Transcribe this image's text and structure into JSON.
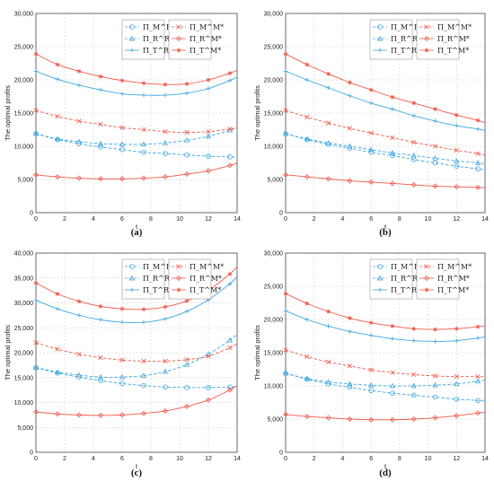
{
  "colors": {
    "blue": "#3ea6e0",
    "red": "#ef5a48",
    "axis": "#333333",
    "grid": "#c8c8c8"
  },
  "legend_labels": {
    "pi_M_R": "Π_M^R*",
    "pi_R_R": "Π_R^R*",
    "pi_T_R": "Π_T^R*",
    "pi_M_M": "Π_M^M*",
    "pi_R_M": "Π_R^M*",
    "pi_T_M": "Π_T^M*"
  },
  "chart_data": [
    {
      "type": "line",
      "caption": "(a)",
      "xlabel": "t",
      "ylabel": "The optimal profits",
      "xlim": [
        0,
        14
      ],
      "ylim": [
        0,
        30000
      ],
      "xticks": [
        "0",
        "2",
        "4",
        "6",
        "8",
        "10",
        "12",
        "14"
      ],
      "yticks": [
        "0",
        "5,000",
        "10,000",
        "15,000",
        "20,000",
        "25,000",
        "30,000"
      ],
      "x": [
        0,
        1.5,
        3,
        4.5,
        6,
        7.5,
        9,
        10.5,
        12,
        13.5
      ],
      "series": [
        {
          "name": "Π_M^R*",
          "color": "blue",
          "dash": true,
          "marker": "circle",
          "values": [
            11900,
            11000,
            10400,
            9900,
            9500,
            9100,
            8900,
            8700,
            8500,
            8400
          ]
        },
        {
          "name": "Π_R^R*",
          "color": "blue",
          "dash": true,
          "marker": "triangle",
          "values": [
            11900,
            11100,
            10700,
            10400,
            10300,
            10300,
            10500,
            10900,
            11500,
            12400
          ]
        },
        {
          "name": "Π_T^R*",
          "color": "blue",
          "dash": false,
          "marker": "plus",
          "values": [
            21300,
            20100,
            19200,
            18500,
            17900,
            17700,
            17700,
            18000,
            18700,
            19900
          ]
        },
        {
          "name": "Π_M^M*",
          "color": "red",
          "dash": true,
          "marker": "x",
          "values": [
            15400,
            14500,
            13800,
            13300,
            12800,
            12500,
            12200,
            12100,
            12200,
            12600
          ]
        },
        {
          "name": "Π_R^M*",
          "color": "red",
          "dash": false,
          "marker": "diamond",
          "values": [
            5700,
            5400,
            5200,
            5100,
            5100,
            5200,
            5400,
            5800,
            6300,
            7100
          ]
        },
        {
          "name": "Π_T^M*",
          "color": "red",
          "dash": false,
          "marker": "star",
          "values": [
            23900,
            22300,
            21300,
            20500,
            19900,
            19500,
            19300,
            19400,
            20000,
            21000
          ]
        }
      ]
    },
    {
      "type": "line",
      "caption": "(b)",
      "xlabel": "t",
      "ylabel": "The optimal profits",
      "xlim": [
        0,
        14
      ],
      "ylim": [
        0,
        30000
      ],
      "xticks": [
        "0",
        "2",
        "4",
        "6",
        "8",
        "10",
        "12",
        "14"
      ],
      "yticks": [
        "0",
        "5,000",
        "10,000",
        "15,000",
        "20,000",
        "25,000",
        "30,000"
      ],
      "x": [
        0,
        1.5,
        3,
        4.5,
        6,
        7.5,
        9,
        10.5,
        12,
        13.5
      ],
      "series": [
        {
          "name": "Π_M^R*",
          "color": "blue",
          "dash": true,
          "marker": "circle",
          "values": [
            11900,
            11000,
            10300,
            9700,
            9100,
            8600,
            8000,
            7500,
            7000,
            6600
          ]
        },
        {
          "name": "Π_R^R*",
          "color": "blue",
          "dash": true,
          "marker": "triangle",
          "values": [
            11900,
            11100,
            10500,
            10000,
            9500,
            9000,
            8600,
            8200,
            7800,
            7500
          ]
        },
        {
          "name": "Π_T^R*",
          "color": "blue",
          "dash": false,
          "marker": "plus",
          "values": [
            21300,
            20000,
            18800,
            17600,
            16500,
            15600,
            14600,
            13800,
            13100,
            12600
          ]
        },
        {
          "name": "Π_M^M*",
          "color": "red",
          "dash": true,
          "marker": "x",
          "values": [
            15400,
            14400,
            13500,
            12700,
            12000,
            11300,
            10600,
            10000,
            9400,
            8900
          ]
        },
        {
          "name": "Π_R^M*",
          "color": "red",
          "dash": false,
          "marker": "diamond",
          "values": [
            5700,
            5400,
            5100,
            4800,
            4600,
            4400,
            4200,
            4000,
            3900,
            3800
          ]
        },
        {
          "name": "Π_T^M*",
          "color": "red",
          "dash": false,
          "marker": "star",
          "values": [
            23900,
            22300,
            20900,
            19600,
            18500,
            17400,
            16500,
            15600,
            14700,
            13900
          ]
        }
      ]
    },
    {
      "type": "line",
      "caption": "(c)",
      "xlabel": "t",
      "ylabel": "The optimal profits",
      "xlim": [
        0,
        14
      ],
      "ylim": [
        0,
        40000
      ],
      "xticks": [
        "0",
        "2",
        "4",
        "6",
        "8",
        "10",
        "12",
        "14"
      ],
      "yticks": [
        "0",
        "5,000",
        "10,000",
        "15,000",
        "20,000",
        "25,000",
        "30,000",
        "35,000",
        "40,000"
      ],
      "x": [
        0,
        1.5,
        3,
        4.5,
        6,
        7.5,
        9,
        10.5,
        12,
        13.5
      ],
      "series": [
        {
          "name": "Π_M^R*",
          "color": "blue",
          "dash": true,
          "marker": "circle",
          "values": [
            17000,
            15900,
            15100,
            14400,
            13800,
            13400,
            13100,
            13000,
            13000,
            13100
          ]
        },
        {
          "name": "Π_R^R*",
          "color": "blue",
          "dash": true,
          "marker": "triangle",
          "values": [
            17000,
            16100,
            15500,
            15100,
            15100,
            15400,
            16200,
            17600,
            19700,
            22500
          ]
        },
        {
          "name": "Π_T^R*",
          "color": "blue",
          "dash": false,
          "marker": "plus",
          "values": [
            30500,
            28800,
            27500,
            26600,
            26100,
            26100,
            26800,
            28300,
            30600,
            33800
          ]
        },
        {
          "name": "Π_M^M*",
          "color": "red",
          "dash": true,
          "marker": "x",
          "values": [
            22000,
            20700,
            19700,
            19000,
            18500,
            18300,
            18300,
            18600,
            19300,
            21000
          ]
        },
        {
          "name": "Π_R^M*",
          "color": "red",
          "dash": false,
          "marker": "diamond",
          "values": [
            8100,
            7700,
            7500,
            7400,
            7500,
            7800,
            8300,
            9200,
            10500,
            12500
          ]
        },
        {
          "name": "Π_T^M*",
          "color": "red",
          "dash": false,
          "marker": "star",
          "values": [
            34000,
            31800,
            30300,
            29300,
            28800,
            28700,
            29200,
            30400,
            32500,
            35800
          ]
        }
      ]
    },
    {
      "type": "line",
      "caption": "(d)",
      "xlabel": "t",
      "ylabel": "The optimal profits",
      "xlim": [
        0,
        14
      ],
      "ylim": [
        0,
        30000
      ],
      "xticks": [
        "0",
        "2",
        "4",
        "6",
        "8",
        "10",
        "12",
        "14"
      ],
      "yticks": [
        "0",
        "5,000",
        "10,000",
        "15,000",
        "20,000",
        "25,000",
        "30,000"
      ],
      "x": [
        0,
        1.5,
        3,
        4.5,
        6,
        7.5,
        9,
        10.5,
        12,
        13.5
      ],
      "series": [
        {
          "name": "Π_M^R*",
          "color": "blue",
          "dash": true,
          "marker": "circle",
          "values": [
            11900,
            11000,
            10300,
            9800,
            9300,
            8900,
            8600,
            8300,
            8000,
            7800
          ]
        },
        {
          "name": "Π_R^R*",
          "color": "blue",
          "dash": true,
          "marker": "triangle",
          "values": [
            11900,
            11100,
            10600,
            10300,
            10100,
            10000,
            10000,
            10100,
            10300,
            10700
          ]
        },
        {
          "name": "Π_T^R*",
          "color": "blue",
          "dash": false,
          "marker": "plus",
          "values": [
            21300,
            20000,
            19000,
            18200,
            17600,
            17100,
            16800,
            16700,
            16800,
            17200
          ]
        },
        {
          "name": "Π_M^M*",
          "color": "red",
          "dash": true,
          "marker": "x",
          "values": [
            15400,
            14400,
            13600,
            13000,
            12400,
            12000,
            11700,
            11500,
            11400,
            11400
          ]
        },
        {
          "name": "Π_R^M*",
          "color": "red",
          "dash": false,
          "marker": "diamond",
          "values": [
            5700,
            5400,
            5200,
            5000,
            4900,
            4900,
            5000,
            5200,
            5500,
            5900
          ]
        },
        {
          "name": "Π_T^M*",
          "color": "red",
          "dash": false,
          "marker": "star",
          "values": [
            23900,
            22400,
            21200,
            20200,
            19500,
            19000,
            18600,
            18500,
            18600,
            18900
          ]
        }
      ]
    }
  ]
}
